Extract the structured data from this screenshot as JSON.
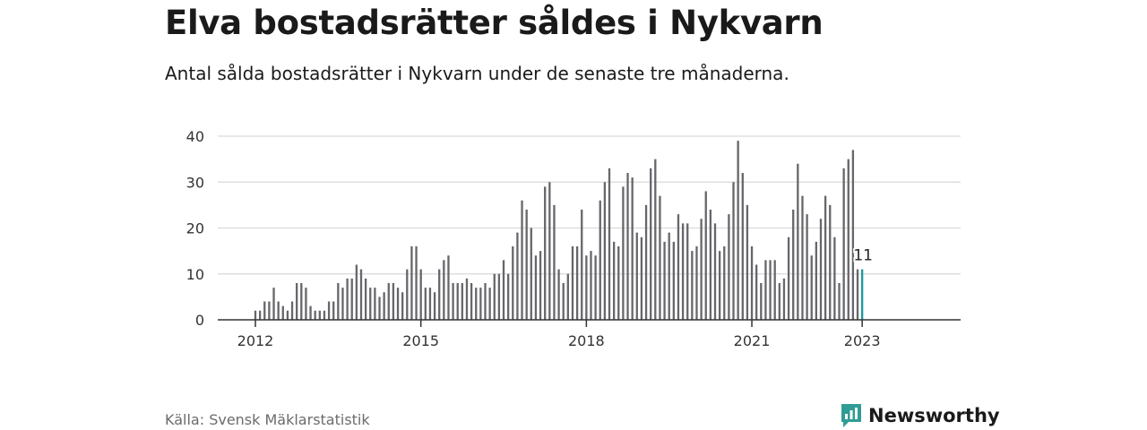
{
  "title": "Elva bostadsrätter såldes i Nykvarn",
  "subtitle": "Antal sålda bostadsrätter i Nykvarn under de senaste tre månaderna.",
  "source": "Källa: Svensk Mäklarstatistik",
  "brand": "Newsworthy",
  "colors": {
    "bar": "#66666b",
    "highlight": "#1d9a9a",
    "brand": "#2f9d94",
    "grid": "#d9d9d9",
    "axis": "#333333"
  },
  "chart_data": {
    "type": "bar",
    "title": "Elva bostadsrätter såldes i Nykvarn",
    "subtitle": "Antal sålda bostadsrätter i Nykvarn under de senaste tre månaderna.",
    "xlabel": "",
    "ylabel": "",
    "ylim": [
      0,
      40
    ],
    "yticks": [
      0,
      10,
      20,
      30,
      40
    ],
    "xticks": [
      {
        "label": "2012",
        "x": "2012-01"
      },
      {
        "label": "2015",
        "x": "2015-01"
      },
      {
        "label": "2018",
        "x": "2018-01"
      },
      {
        "label": "2021",
        "x": "2021-01"
      },
      {
        "label": "2023",
        "x": "2023-01"
      }
    ],
    "grid": true,
    "highlight": {
      "x": "2023-01",
      "label": "11"
    },
    "categories": [
      "2012-01",
      "2012-02",
      "2012-03",
      "2012-04",
      "2012-05",
      "2012-06",
      "2012-07",
      "2012-08",
      "2012-09",
      "2012-10",
      "2012-11",
      "2012-12",
      "2013-01",
      "2013-02",
      "2013-03",
      "2013-04",
      "2013-05",
      "2013-06",
      "2013-07",
      "2013-08",
      "2013-09",
      "2013-10",
      "2013-11",
      "2013-12",
      "2014-01",
      "2014-02",
      "2014-03",
      "2014-04",
      "2014-05",
      "2014-06",
      "2014-07",
      "2014-08",
      "2014-09",
      "2014-10",
      "2014-11",
      "2014-12",
      "2015-01",
      "2015-02",
      "2015-03",
      "2015-04",
      "2015-05",
      "2015-06",
      "2015-07",
      "2015-08",
      "2015-09",
      "2015-10",
      "2015-11",
      "2015-12",
      "2016-01",
      "2016-02",
      "2016-03",
      "2016-04",
      "2016-05",
      "2016-06",
      "2016-07",
      "2016-08",
      "2016-09",
      "2016-10",
      "2016-11",
      "2016-12",
      "2017-01",
      "2017-02",
      "2017-03",
      "2017-04",
      "2017-05",
      "2017-06",
      "2017-07",
      "2017-08",
      "2017-09",
      "2017-10",
      "2017-11",
      "2017-12",
      "2018-01",
      "2018-02",
      "2018-03",
      "2018-04",
      "2018-05",
      "2018-06",
      "2018-07",
      "2018-08",
      "2018-09",
      "2018-10",
      "2018-11",
      "2018-12",
      "2019-01",
      "2019-02",
      "2019-03",
      "2019-04",
      "2019-05",
      "2019-06",
      "2019-07",
      "2019-08",
      "2019-09",
      "2019-10",
      "2019-11",
      "2019-12",
      "2020-01",
      "2020-02",
      "2020-03",
      "2020-04",
      "2020-05",
      "2020-06",
      "2020-07",
      "2020-08",
      "2020-09",
      "2020-10",
      "2020-11",
      "2020-12",
      "2021-01",
      "2021-02",
      "2021-03",
      "2021-04",
      "2021-05",
      "2021-06",
      "2021-07",
      "2021-08",
      "2021-09",
      "2021-10",
      "2021-11",
      "2021-12",
      "2022-01",
      "2022-02",
      "2022-03",
      "2022-04",
      "2022-05",
      "2022-06",
      "2022-07",
      "2022-08",
      "2022-09",
      "2022-10",
      "2022-11",
      "2022-12",
      "2023-01"
    ],
    "values": [
      2,
      2,
      4,
      4,
      7,
      4,
      3,
      2,
      4,
      8,
      8,
      7,
      3,
      2,
      2,
      2,
      4,
      4,
      8,
      7,
      9,
      9,
      12,
      11,
      9,
      7,
      7,
      5,
      6,
      8,
      8,
      7,
      6,
      11,
      16,
      16,
      11,
      7,
      7,
      6,
      11,
      13,
      14,
      8,
      8,
      8,
      9,
      8,
      7,
      7,
      8,
      7,
      10,
      10,
      13,
      10,
      16,
      19,
      26,
      24,
      20,
      14,
      15,
      29,
      30,
      25,
      11,
      8,
      10,
      16,
      16,
      24,
      14,
      15,
      14,
      26,
      30,
      33,
      17,
      16,
      29,
      32,
      31,
      19,
      18,
      25,
      33,
      35,
      27,
      17,
      19,
      17,
      23,
      21,
      21,
      15,
      16,
      22,
      28,
      24,
      21,
      15,
      16,
      23,
      30,
      39,
      32,
      25,
      16,
      12,
      8,
      13,
      13,
      13,
      8,
      9,
      18,
      24,
      34,
      27,
      23,
      14,
      17,
      22,
      27,
      25,
      18,
      8,
      33,
      35,
      37,
      11,
      11
    ]
  }
}
